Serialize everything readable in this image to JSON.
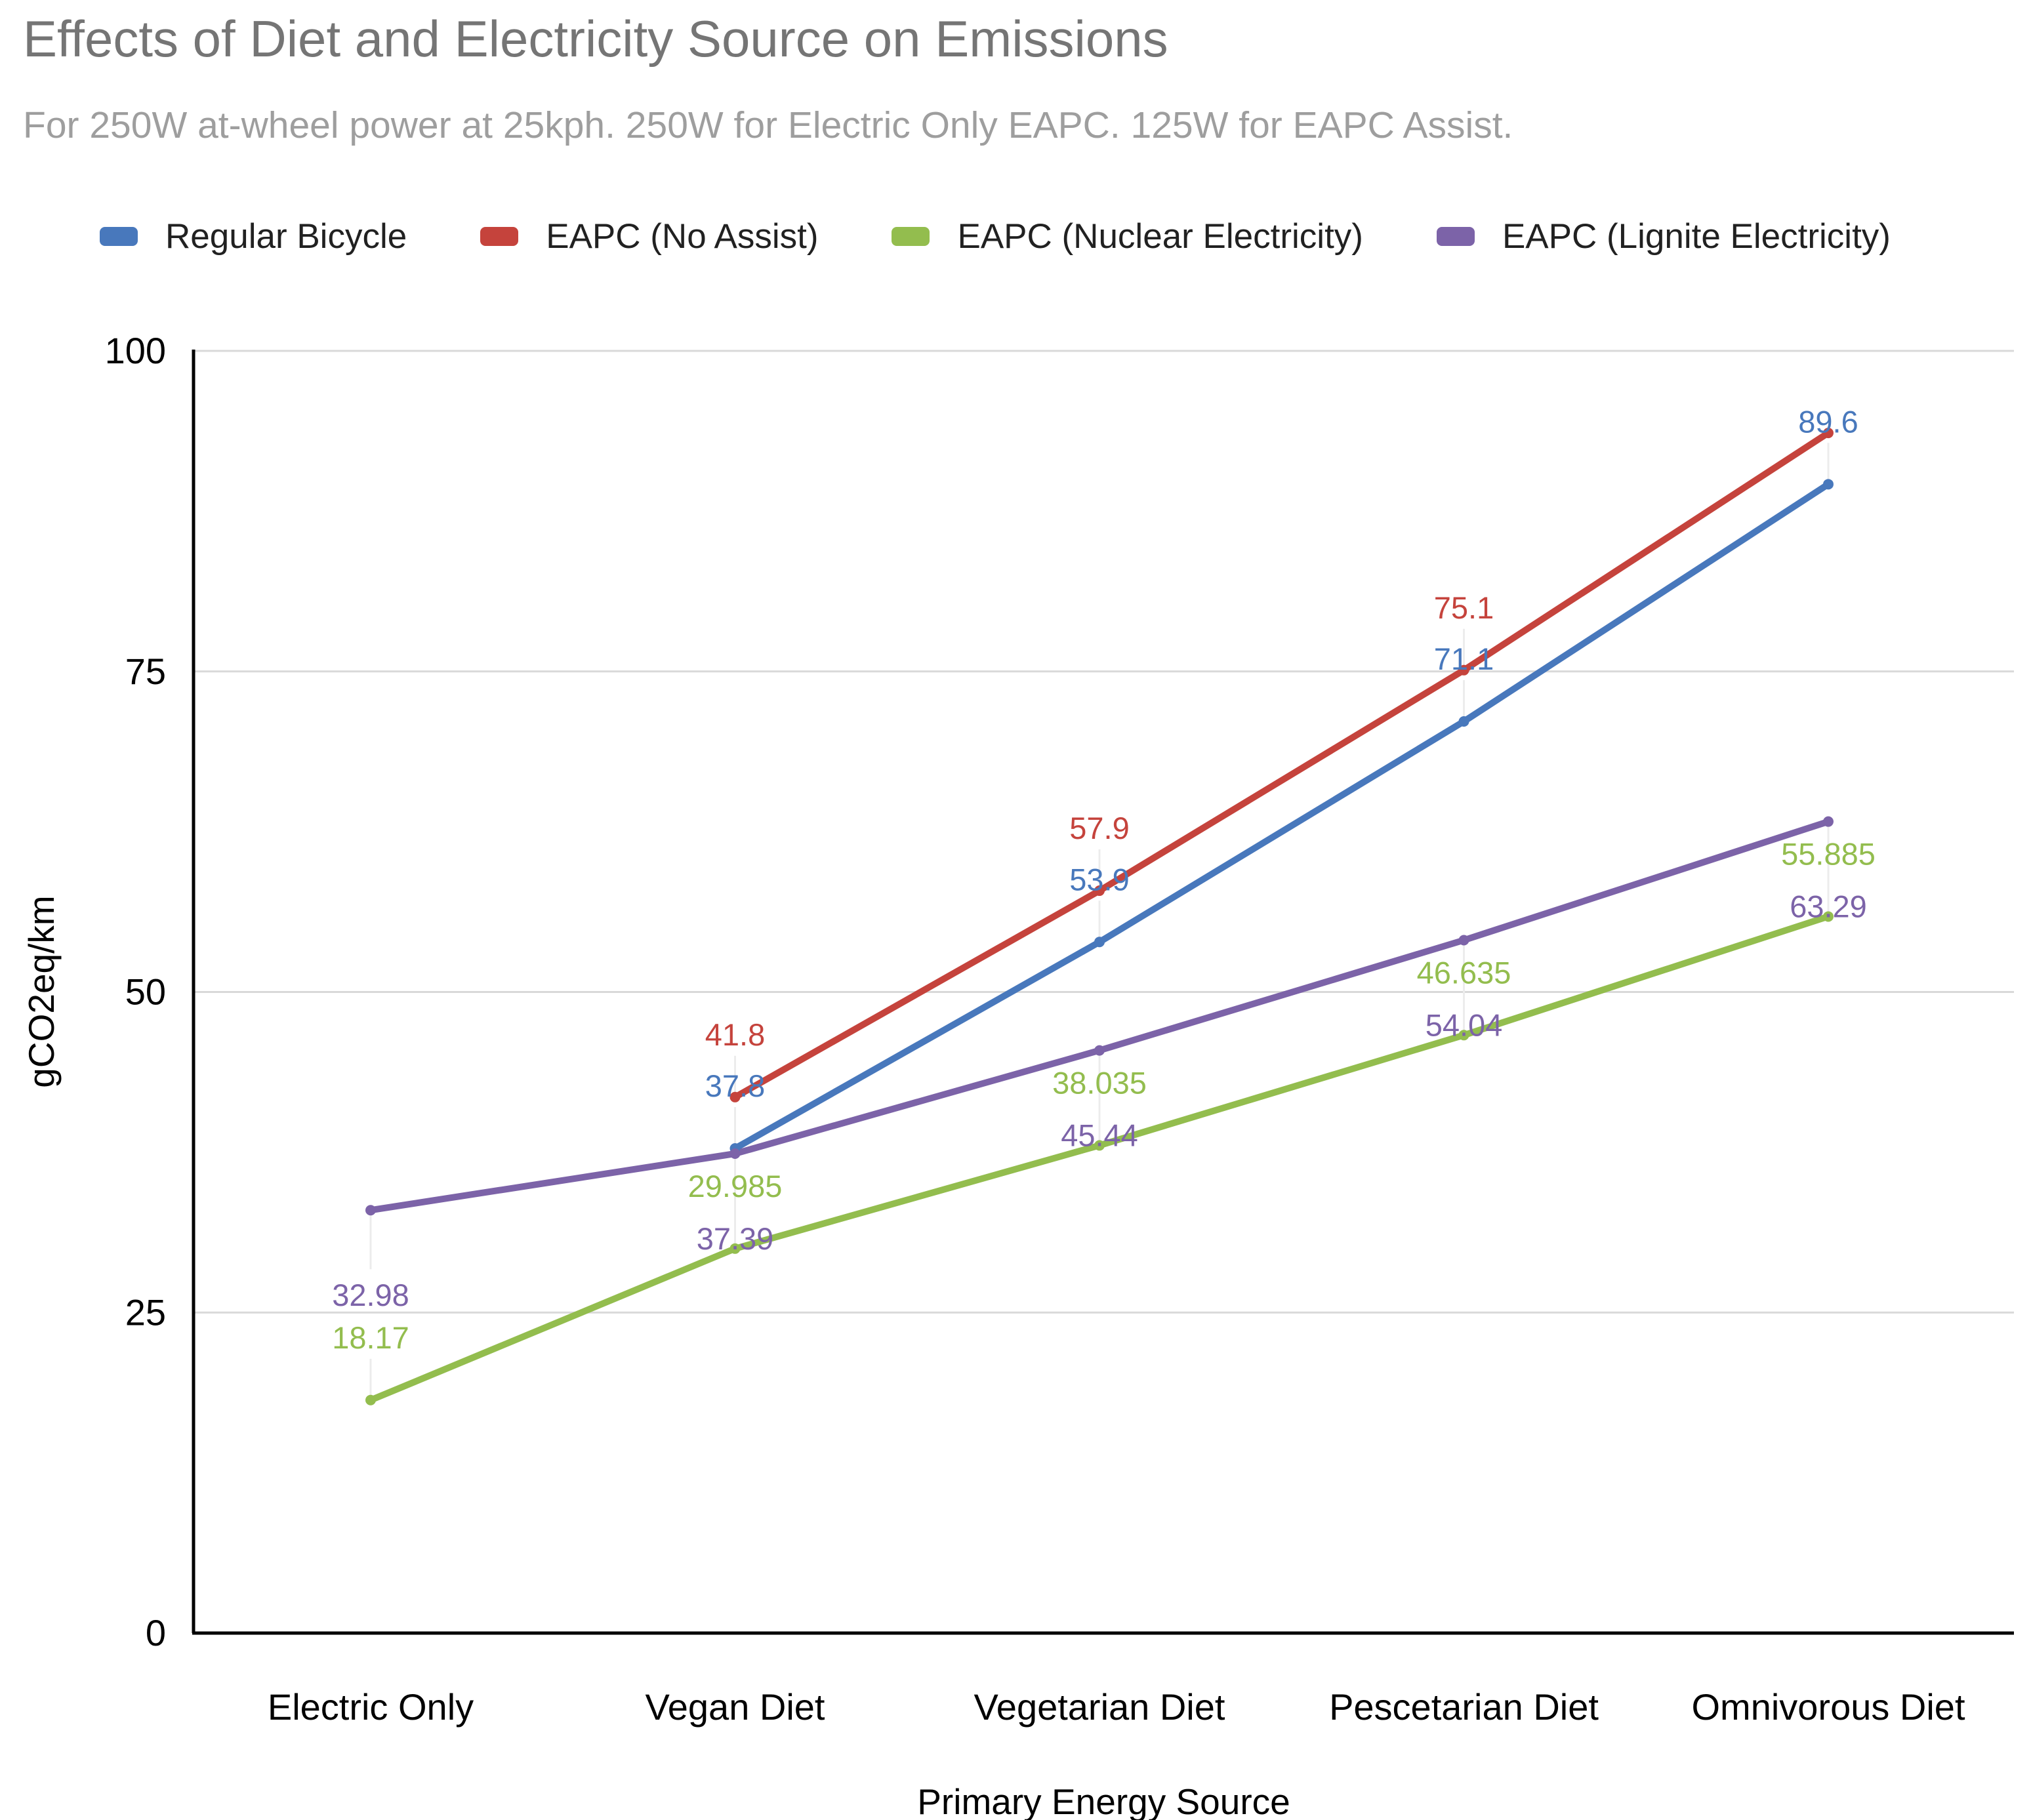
{
  "header": {
    "title": "Effects of Diet and Electricity Source on Emissions",
    "subtitle": "For 250W at-wheel power at 25kph. 250W for Electric Only EAPC. 125W for EAPC Assist."
  },
  "legend": {
    "items": [
      {
        "label": "Regular Bicycle",
        "color": "#4878BC"
      },
      {
        "label": "EAPC (No Assist)",
        "color": "#C5433C"
      },
      {
        "label": "EAPC (Nuclear Electricity)",
        "color": "#93BD4E"
      },
      {
        "label": "EAPC (Lignite Electricity)",
        "color": "#7C63A8"
      }
    ]
  },
  "chart_data": {
    "type": "line",
    "title": "Effects of Diet and Electricity Source on Emissions",
    "subtitle": "For 250W at-wheel power at 25kph. 250W for Electric Only EAPC. 125W for EAPC Assist.",
    "categories": [
      "Electric Only",
      "Vegan Diet",
      "Vegetarian Diet",
      "Pescetarian Diet",
      "Omnivorous Diet"
    ],
    "xlabel": "Primary Energy Source",
    "ylabel": "gCO2eq/km",
    "ylim": [
      0,
      100
    ],
    "yticks": [
      0,
      25,
      50,
      75,
      100
    ],
    "grid": true,
    "legend_position": "top",
    "series": [
      {
        "name": "Regular Bicycle",
        "color": "#4878BC",
        "label_position": "above",
        "values": [
          null,
          37.8,
          53.9,
          71.1,
          89.6
        ],
        "labels": [
          null,
          "37.8",
          "53.9",
          "71.1",
          "89.6"
        ]
      },
      {
        "name": "EAPC (No Assist)",
        "color": "#C5433C",
        "label_position": "above",
        "values": [
          null,
          41.8,
          57.9,
          75.1,
          93.6
        ],
        "labels": [
          null,
          "41.8",
          "57.9",
          "75.1",
          null
        ]
      },
      {
        "name": "EAPC (Nuclear Electricity)",
        "color": "#93BD4E",
        "label_position": "above",
        "values": [
          18.17,
          29.985,
          38.035,
          46.635,
          55.885
        ],
        "labels": [
          "18.17",
          "29.985",
          "38.035",
          "46.635",
          "55.885"
        ]
      },
      {
        "name": "EAPC (Lignite Electricity)",
        "color": "#7C63A8",
        "label_position": "below",
        "values": [
          32.98,
          37.39,
          45.44,
          54.04,
          63.29
        ],
        "labels": [
          "32.98",
          "37.39",
          "45.44",
          "54.04",
          "63.29"
        ]
      }
    ]
  }
}
